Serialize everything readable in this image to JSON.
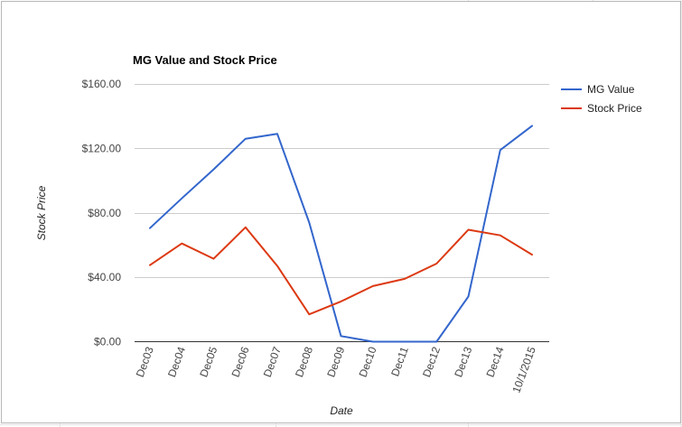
{
  "chart_data": {
    "type": "line",
    "title": "MG Value and Stock Price",
    "xlabel": "Date",
    "ylabel": "Stock Price",
    "categories": [
      "Dec03",
      "Dec04",
      "Dec05",
      "Dec06",
      "Dec07",
      "Dec08",
      "Dec09",
      "Dec10",
      "Dec11",
      "Dec12",
      "Dec13",
      "Dec14",
      "10/1/2015"
    ],
    "series": [
      {
        "name": "MG Value",
        "color": "#3366cc",
        "values": [
          70.5,
          89,
          107,
          126,
          129,
          74,
          3.5,
          0,
          0,
          0,
          28,
          119,
          134
        ]
      },
      {
        "name": "Stock Price",
        "color": "#dc3912",
        "values": [
          47.5,
          61,
          51.5,
          71,
          47,
          17,
          25,
          34.5,
          39,
          48.5,
          69.5,
          66,
          54
        ]
      }
    ],
    "ylim": [
      0,
      160
    ],
    "yticks": [
      0,
      40,
      80,
      120,
      160
    ],
    "ytick_labels": [
      "$0.00",
      "$40.00",
      "$80.00",
      "$120.00",
      "$160.00"
    ],
    "grid": true,
    "legend": "right"
  }
}
